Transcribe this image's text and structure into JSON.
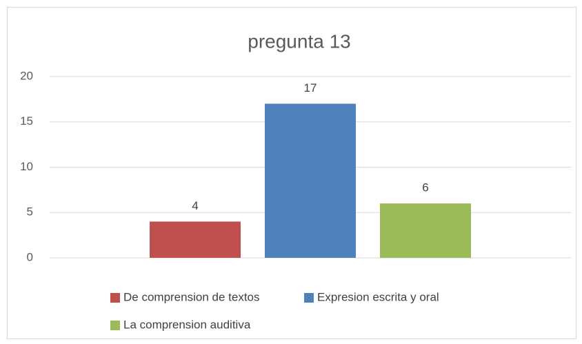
{
  "chart_data": {
    "type": "bar",
    "title": "pregunta 13",
    "categories": [
      null
    ],
    "series": [
      {
        "name": "De comprension de textos",
        "color": "#c0504d",
        "values": [
          4
        ]
      },
      {
        "name": "Expresion escrita y oral",
        "color": "#4f81bd",
        "values": [
          17
        ]
      },
      {
        "name": "La comprension auditiva",
        "color": "#9bbb59",
        "values": [
          6
        ]
      }
    ],
    "ylim": [
      0,
      20
    ],
    "yticks": [
      0,
      5,
      10,
      15,
      20
    ],
    "grid": true,
    "legend": "bottom"
  }
}
